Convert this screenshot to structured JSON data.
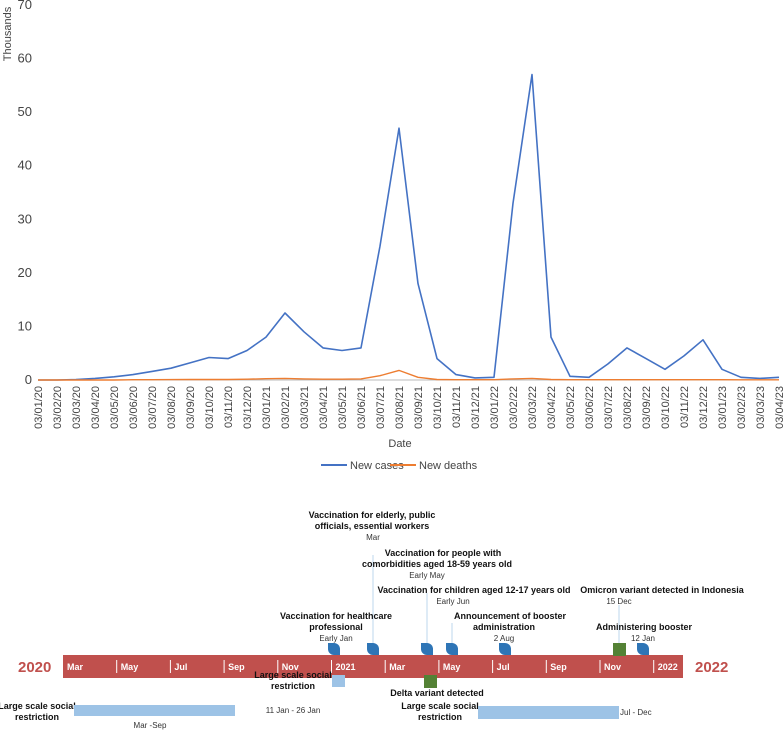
{
  "chart_data": {
    "type": "line",
    "ylabel": "Thousands",
    "xlabel": "Date",
    "ylim": [
      0,
      70
    ],
    "yticks": [
      "0",
      "10",
      "20",
      "30",
      "40",
      "50",
      "60",
      "70"
    ],
    "x_tick_labels": [
      "03/01/20",
      "03/02/20",
      "03/03/20",
      "03/04/20",
      "03/05/20",
      "03/06/20",
      "03/07/20",
      "03/08/20",
      "03/09/20",
      "03/10/20",
      "03/11/20",
      "03/12/20",
      "03/01/21",
      "03/02/21",
      "03/03/21",
      "03/04/21",
      "03/05/21",
      "03/06/21",
      "03/07/21",
      "03/08/21",
      "03/09/21",
      "03/10/21",
      "03/11/21",
      "03/12/21",
      "03/01/22",
      "03/02/22",
      "03/03/22",
      "03/04/22",
      "03/05/22",
      "03/06/22",
      "03/07/22",
      "03/08/22",
      "03/09/22",
      "03/10/22",
      "03/11/22",
      "03/12/22",
      "03/01/23",
      "03/02/23",
      "03/03/23",
      "03/04/23"
    ],
    "series": [
      {
        "name": "New cases",
        "color": "#4472c4",
        "values": [
          0,
          0,
          0.1,
          0.3,
          0.6,
          1.0,
          1.6,
          2.2,
          3.2,
          4.2,
          4.0,
          5.5,
          8.0,
          12.5,
          9.0,
          6.0,
          5.5,
          6.0,
          25,
          47,
          18,
          4,
          1,
          0.4,
          0.5,
          33,
          57,
          8,
          0.7,
          0.5,
          3.0,
          6.0,
          4.0,
          2.0,
          4.5,
          7.5,
          2.0,
          0.5,
          0.3,
          0.5
        ]
      },
      {
        "name": "New deaths",
        "color": "#ed7d31",
        "values": [
          0,
          0,
          0,
          0,
          0,
          0.05,
          0.05,
          0.07,
          0.1,
          0.1,
          0.1,
          0.15,
          0.25,
          0.3,
          0.2,
          0.15,
          0.15,
          0.2,
          0.8,
          1.8,
          0.5,
          0.1,
          0.05,
          0.05,
          0.05,
          0.2,
          0.3,
          0.1,
          0.05,
          0.05,
          0.05,
          0.05,
          0.05,
          0.05,
          0.05,
          0.05,
          0.05,
          0.03,
          0.03,
          0.03
        ]
      }
    ],
    "legend": [
      "New cases",
      "New deaths"
    ],
    "legend_position": "bottom"
  },
  "timeline": {
    "year_start": "2020",
    "year_end": "2022",
    "months": [
      "Mar",
      "May",
      "Jul",
      "Sep",
      "Nov",
      "2021",
      "Mar",
      "May",
      "Jul",
      "Sep",
      "Nov",
      "2022"
    ],
    "bar_color": "#c0504d",
    "events": [
      {
        "title": "Vaccination for elderly, public officials, essential workers",
        "date": "Mar"
      },
      {
        "title": "Vaccination for people with comorbidities aged 18-59 years old",
        "date": "Early May"
      },
      {
        "title": "Vaccination for children aged 12-17 years old",
        "date": "Early Jun"
      },
      {
        "title": "Vaccination for healthcare professional",
        "date": "Early Jan"
      },
      {
        "title": "Announcement of booster administration",
        "date": "2 Aug"
      },
      {
        "title": "Omicron variant detected in Indonesia",
        "date": "15 Dec"
      },
      {
        "title": "Administering booster",
        "date": "12 Jan"
      },
      {
        "title": "Delta variant detected",
        "date": ""
      }
    ],
    "restrictions": [
      {
        "title": "Large scale social restriction",
        "period": "Mar -Sep"
      },
      {
        "title": "Large scale social restriction",
        "period": "11 Jan - 26 Jan"
      },
      {
        "title": "Large scale social restriction",
        "period": "Jul - Dec"
      }
    ]
  }
}
